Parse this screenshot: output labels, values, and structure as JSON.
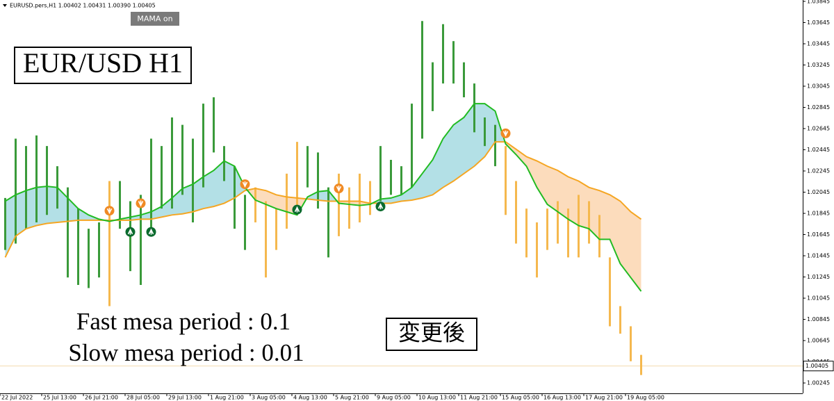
{
  "chart_data": {
    "type": "ohlc",
    "header": "EURUSD.pers,H1  1.00402 1.00431 1.00390 1.00405",
    "button": "MAMA on",
    "title": "EUR/USD H1",
    "annotations": [
      "Fast mesa period : 0.1",
      "Slow mesa period : 0.01",
      "変更後"
    ],
    "xlim": [
      -0.5,
      76.5
    ],
    "ylim": [
      1.00147,
      1.03858
    ],
    "xticks": [
      {
        "value": -0.5,
        "label": "22 Jul 2022"
      },
      {
        "value": 3.5,
        "label": "25 Jul 13:00"
      },
      {
        "value": 7.5,
        "label": "26 Jul 21:00"
      },
      {
        "value": 11.5,
        "label": "28 Jul 05:00"
      },
      {
        "value": 15.5,
        "label": "29 Jul 13:00"
      },
      {
        "value": 19.5,
        "label": "1 Aug 21:00"
      },
      {
        "value": 23.5,
        "label": "3 Aug 05:00"
      },
      {
        "value": 27.5,
        "label": "4 Aug 13:00"
      },
      {
        "value": 31.5,
        "label": "5 Aug 21:00"
      },
      {
        "value": 35.5,
        "label": "9 Aug 05:00"
      },
      {
        "value": 39.5,
        "label": "10 Aug 13:00"
      },
      {
        "value": 43.5,
        "label": "11 Aug 21:00"
      },
      {
        "value": 47.5,
        "label": "15 Aug 05:00"
      },
      {
        "value": 51.5,
        "label": "16 Aug 13:00"
      },
      {
        "value": 55.5,
        "label": "17 Aug 21:00"
      },
      {
        "value": 59.5,
        "label": "19 Aug 05:00"
      }
    ],
    "yticks": [
      1.00245,
      1.00445,
      1.00645,
      1.00845,
      1.01045,
      1.01245,
      1.01445,
      1.01645,
      1.01845,
      1.02045,
      1.02245,
      1.02445,
      1.02645,
      1.02845,
      1.03045,
      1.03245,
      1.03445,
      1.03645,
      1.03845
    ],
    "bars": {
      "up_color": "#3a9a3a",
      "down_color": "#f5b84e",
      "high": [
        1.0199,
        1.0255,
        1.0248,
        1.0258,
        1.0248,
        1.0229,
        1.0209,
        1.0189,
        1.017,
        1.0176,
        1.0215,
        1.0215,
        1.0196,
        1.0202,
        1.0255,
        1.0248,
        1.0275,
        1.0268,
        1.0255,
        1.0288,
        1.0294,
        1.0248,
        1.0229,
        1.0202,
        1.0209,
        1.0196,
        1.0189,
        1.0222,
        1.0252,
        1.0248,
        1.0242,
        1.0209,
        1.0222,
        1.0209,
        1.0222,
        1.0215,
        1.0248,
        1.0235,
        1.0229,
        1.0288,
        1.0366,
        1.0327,
        1.0363,
        1.0347,
        1.0327,
        1.0307,
        1.0275,
        1.0268,
        1.0248,
        1.0215,
        1.0189,
        1.0176,
        1.0189,
        1.0196,
        1.0189,
        1.0202,
        1.0196,
        1.0183,
        1.0143,
        1.0097,
        1.0078,
        1.0051
      ],
      "low": [
        1.015,
        1.0156,
        1.017,
        1.0176,
        1.0183,
        1.0189,
        1.0124,
        1.0117,
        1.0114,
        1.0124,
        1.0097,
        1.017,
        1.013,
        1.0117,
        1.0163,
        1.0189,
        1.0189,
        1.0202,
        1.0176,
        1.0209,
        1.0242,
        1.0215,
        1.017,
        1.015,
        1.0176,
        1.0124,
        1.015,
        1.017,
        1.0183,
        1.0209,
        1.0189,
        1.0143,
        1.0163,
        1.017,
        1.0176,
        1.0183,
        1.0196,
        1.0202,
        1.0202,
        1.0209,
        1.0255,
        1.0281,
        1.0307,
        1.0307,
        1.0294,
        1.0261,
        1.0248,
        1.0229,
        1.0183,
        1.0156,
        1.0143,
        1.0124,
        1.015,
        1.0156,
        1.0143,
        1.0143,
        1.0156,
        1.0143,
        1.0078,
        1.0071,
        1.0045,
        1.0032
      ]
    },
    "fast": {
      "color": "#22bb22",
      "values": [
        1.0196,
        1.0202,
        1.0206,
        1.0209,
        1.021,
        1.0209,
        1.0199,
        1.0189,
        1.0183,
        1.0179,
        1.0177,
        1.0179,
        1.0181,
        1.0183,
        1.0186,
        1.0191,
        1.0199,
        1.0208,
        1.0212,
        1.0219,
        1.0225,
        1.0234,
        1.0229,
        1.0209,
        1.0197,
        1.0193,
        1.0189,
        1.0186,
        1.0183,
        1.02,
        1.0205,
        1.0206,
        1.0194,
        1.0193,
        1.0192,
        1.0193,
        1.0198,
        1.0199,
        1.0202,
        1.0209,
        1.0222,
        1.0235,
        1.0255,
        1.0268,
        1.0275,
        1.0288,
        1.0288,
        1.0281,
        1.025,
        1.024,
        1.0229,
        1.0209,
        1.0193,
        1.0186,
        1.0179,
        1.0173,
        1.017,
        1.016,
        1.016,
        1.0137,
        1.0124,
        1.0111
      ]
    },
    "slow": {
      "color": "#f5a623",
      "values": [
        1.0143,
        1.0163,
        1.017,
        1.0173,
        1.0175,
        1.0176,
        1.0177,
        1.0178,
        1.0178,
        1.0178,
        1.0178,
        1.0178,
        1.0178,
        1.0179,
        1.0179,
        1.0181,
        1.0183,
        1.0184,
        1.0186,
        1.0189,
        1.0191,
        1.0194,
        1.0199,
        1.0206,
        1.0208,
        1.0206,
        1.0202,
        1.02,
        1.0199,
        1.0198,
        1.0197,
        1.0196,
        1.0196,
        1.0196,
        1.0196,
        1.0194,
        1.0194,
        1.0194,
        1.0196,
        1.0197,
        1.0199,
        1.0202,
        1.0209,
        1.0215,
        1.0222,
        1.0229,
        1.0238,
        1.0252,
        1.0252,
        1.0245,
        1.0238,
        1.0234,
        1.0229,
        1.0225,
        1.0219,
        1.0215,
        1.0209,
        1.0206,
        1.0202,
        1.0196,
        1.0186,
        1.0179
      ]
    },
    "fill_colors": {
      "above": "#b3e0e6",
      "below": "#fcdcbc"
    },
    "signal_colors": {
      "sell": "#f08a24",
      "buy": "#0b6b2e"
    },
    "signals": [
      {
        "kind": "sell",
        "x": 10,
        "y": 1.0187
      },
      {
        "kind": "sell",
        "x": 13,
        "y": 1.0194
      },
      {
        "kind": "sell",
        "x": 23,
        "y": 1.0212
      },
      {
        "kind": "sell",
        "x": 32,
        "y": 1.0208
      },
      {
        "kind": "sell",
        "x": 48,
        "y": 1.026
      },
      {
        "kind": "buy",
        "x": 12,
        "y": 1.0167
      },
      {
        "kind": "buy",
        "x": 14,
        "y": 1.0167
      },
      {
        "kind": "buy",
        "x": 28,
        "y": 1.0188
      },
      {
        "kind": "buy",
        "x": 36,
        "y": 1.0191
      }
    ],
    "last_price": 1.00405,
    "last_price_color": "#f3dcae"
  }
}
